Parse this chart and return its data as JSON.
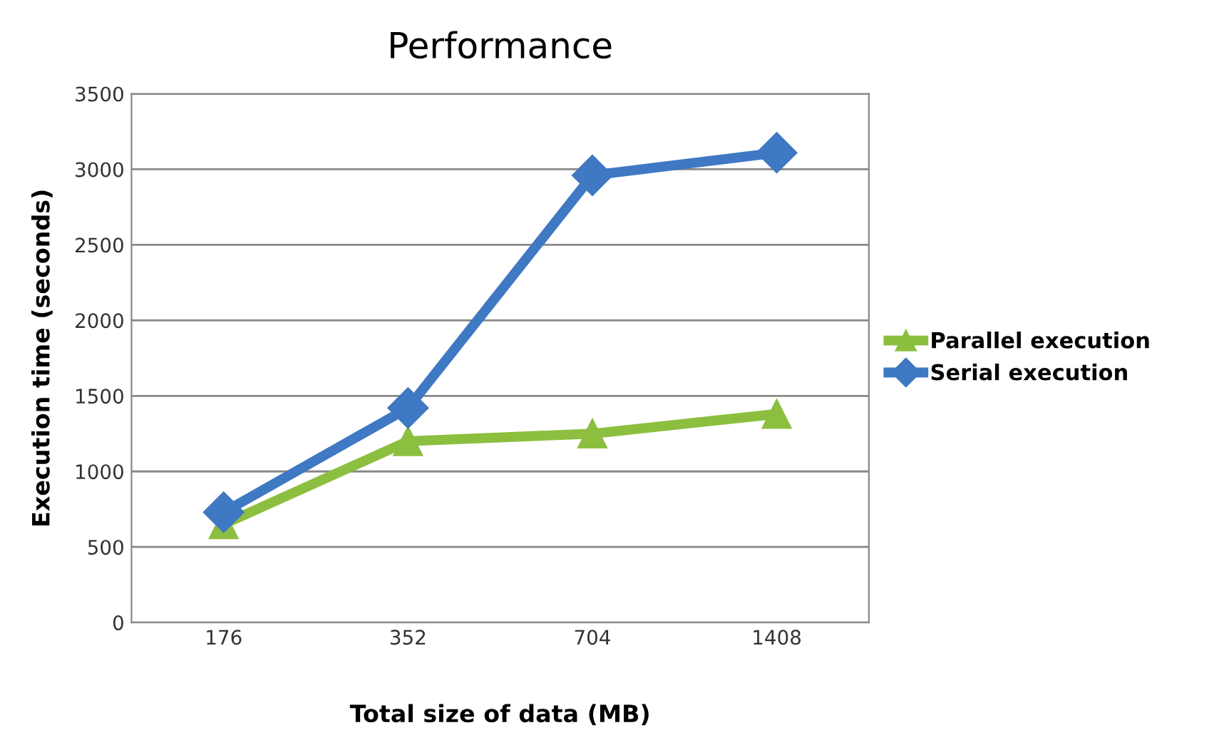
{
  "chart_data": {
    "type": "line",
    "title": "Performance",
    "xlabel": "Total size of data (MB)",
    "ylabel": "Execution time (seconds)",
    "categories": [
      "176",
      "352",
      "704",
      "1408"
    ],
    "series": [
      {
        "name": "Parallel execution",
        "color": "#8cbf3f",
        "marker": "triangle",
        "values": [
          650,
          1200,
          1250,
          1380
        ]
      },
      {
        "name": "Serial execution",
        "color": "#3f78c3",
        "marker": "diamond",
        "values": [
          730,
          1420,
          2960,
          3110
        ]
      }
    ],
    "ylim": [
      0,
      3500
    ],
    "yticks": [
      0,
      500,
      1000,
      1500,
      2000,
      2500,
      3000,
      3500
    ],
    "grid": "y",
    "legend": "right",
    "line_style": "solid"
  }
}
